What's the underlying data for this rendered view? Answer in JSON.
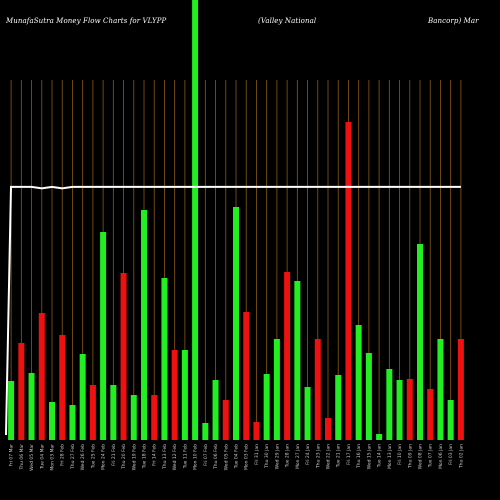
{
  "header": {
    "left": "MunafaSutra  Money Flow  Charts for VLYPP",
    "center": "(Valley National",
    "right": "Bancorp) Mar"
  },
  "chart_data": {
    "type": "bar",
    "title": "MunafaSutra  Money Flow  Charts for VLYPP (Valley National Bancorp) Mar",
    "colors": {
      "up": "#22ee22",
      "down": "#ee1111",
      "line": "#ffffff",
      "grid": "#8b5a14"
    },
    "categories": [
      "Fri 07 Mar",
      "Thu 06 Mar",
      "Wed 05 Mar",
      "Tue 04 Mar",
      "Mon 03 Mar",
      "Fri 28 Feb",
      "Thu 27 Feb",
      "Wed 26 Feb",
      "Tue 25 Feb",
      "Mon 24 Feb",
      "Fri 21 Feb",
      "Thu 20 Feb",
      "Wed 19 Feb",
      "Tue 18 Feb",
      "Fri 14 Feb",
      "Thu 13 Feb",
      "Wed 12 Feb",
      "Tue 11 Feb",
      "Mon 10 Feb",
      "Fri 07 Feb",
      "Thu 06 Feb",
      "Wed 05 Feb",
      "Tue 04 Feb",
      "Mon 03 Feb",
      "Fri 31 Jan",
      "Thu 30 Jan",
      "Wed 29 Jan",
      "Tue 28 Jan",
      "Mon 27 Jan",
      "Fri 24 Jan",
      "Thu 23 Jan",
      "Wed 22 Jan",
      "Tue 21 Jan",
      "Fri 17 Jan",
      "Thu 16 Jan",
      "Wed 15 Jan",
      "Tue 14 Jan",
      "Mon 13 Jan",
      "Fri 10 Jan",
      "Thu 09 Jan",
      "Wed 08 Jan",
      "Tue 07 Jan",
      "Mon 06 Jan",
      "Fri 03 Jan",
      "Thu 02 Jan"
    ],
    "values": [
      59,
      97,
      67,
      127,
      38,
      105,
      35,
      86,
      55,
      208,
      55,
      167,
      45,
      230,
      45,
      162,
      90,
      90,
      440,
      17,
      60,
      40,
      233,
      128,
      18,
      66,
      101,
      168,
      159,
      53,
      101,
      22,
      65,
      318,
      115,
      87,
      6,
      71,
      60,
      61,
      196,
      51,
      101,
      40,
      101
    ],
    "direction": [
      "up",
      "down",
      "up",
      "down",
      "up",
      "down",
      "up",
      "up",
      "down",
      "up",
      "up",
      "down",
      "up",
      "up",
      "down",
      "up",
      "down",
      "up",
      "up",
      "up",
      "up",
      "down",
      "up",
      "down",
      "down",
      "up",
      "up",
      "down",
      "up",
      "up",
      "down",
      "down",
      "up",
      "down",
      "up",
      "up",
      "up",
      "up",
      "up",
      "down",
      "up",
      "down",
      "up",
      "up",
      "down"
    ],
    "line_values": [
      81,
      81,
      81,
      80.5,
      81,
      80.5,
      81,
      81,
      81,
      81,
      81,
      81,
      81,
      81,
      81,
      81,
      81,
      81,
      81,
      81,
      81,
      81,
      81,
      81,
      81,
      81,
      81,
      81,
      81,
      81,
      81,
      81,
      81,
      81,
      81,
      81,
      81,
      81,
      81,
      81,
      81,
      81,
      81,
      81,
      81
    ],
    "ylim": [
      0,
      440
    ],
    "grid": true
  }
}
